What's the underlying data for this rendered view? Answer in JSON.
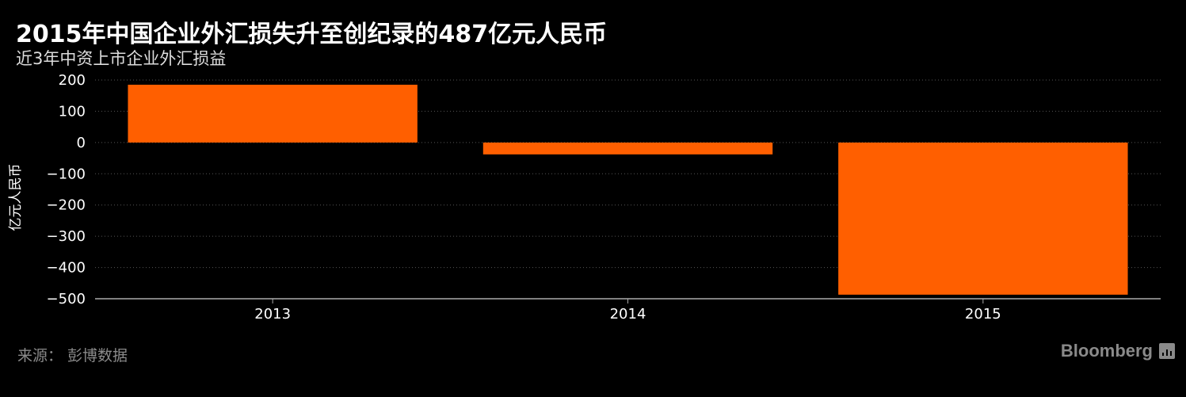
{
  "title": "2015年中国企业外汇损失升至创纪录的487亿元人民币",
  "subtitle": "近3年中资上市企业外汇损益",
  "source": "来源： 彭博数据",
  "brand": "Bloomberg",
  "colors": {
    "bar": "#ff5f00",
    "background": "#000000",
    "grid": "#555555",
    "axis": "#aaaaaa"
  },
  "chart_data": {
    "type": "bar",
    "title": "2015年中国企业外汇损失升至创纪录的487亿元人民币",
    "subtitle": "近3年中资上市企业外汇损益",
    "categories": [
      "2013",
      "2014",
      "2015"
    ],
    "values": [
      185,
      -38,
      -487
    ],
    "xlabel": "",
    "ylabel": "亿元人民币",
    "ylim": [
      -500,
      200
    ],
    "yticks": [
      200,
      100,
      0,
      -100,
      -200,
      -300,
      -400,
      -500
    ],
    "ytick_labels": [
      "200",
      "100",
      "0",
      "−100",
      "−200",
      "−300",
      "−400",
      "−500"
    ],
    "grid": true,
    "legend": "none"
  }
}
